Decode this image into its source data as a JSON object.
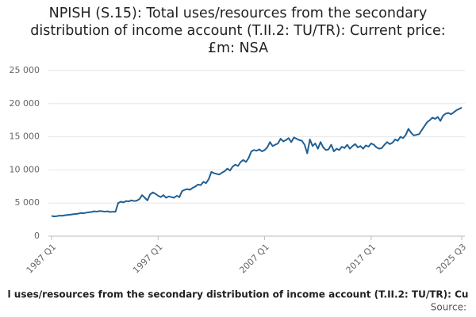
{
  "chart_data": {
    "type": "line",
    "title": "NPISH (S.15): Total uses/resources from the secondary distribution of income account (T.II.2: TU/TR): Current price: £m: NSA",
    "footer": "l uses/resources from the secondary distribution of income account (T.II.2: TU/TR): Cu",
    "source": "Source:",
    "categories": [
      "1987 Q1",
      null,
      null,
      null,
      null,
      null,
      null,
      null,
      null,
      null,
      null,
      null,
      null,
      null,
      null,
      null,
      null,
      null,
      null,
      null,
      null,
      null,
      null,
      null,
      null,
      null,
      null,
      null,
      null,
      null,
      null,
      null,
      null,
      null,
      null,
      null,
      null,
      null,
      null,
      null,
      "1997 Q1",
      null,
      null,
      null,
      null,
      null,
      null,
      null,
      null,
      null,
      null,
      null,
      null,
      null,
      null,
      null,
      null,
      null,
      null,
      null,
      null,
      null,
      null,
      null,
      null,
      null,
      null,
      null,
      null,
      null,
      null,
      null,
      null,
      null,
      null,
      null,
      null,
      null,
      null,
      null,
      "2007 Q1",
      null,
      null,
      null,
      null,
      null,
      null,
      null,
      null,
      null,
      null,
      null,
      null,
      null,
      null,
      null,
      null,
      null,
      null,
      null,
      null,
      null,
      null,
      null,
      null,
      null,
      null,
      null,
      null,
      null,
      null,
      null,
      null,
      null,
      null,
      null,
      null,
      null,
      null,
      null,
      "2017 Q1",
      null,
      null,
      null,
      null,
      null,
      null,
      null,
      null,
      null,
      null,
      null,
      null,
      null,
      null,
      null,
      null,
      null,
      null,
      null,
      null,
      null,
      null,
      null,
      null,
      null,
      null,
      null,
      null,
      null,
      null,
      null,
      null,
      null,
      "2025 Q3"
    ],
    "values": [
      3050,
      2980,
      3020,
      3100,
      3080,
      3150,
      3200,
      3250,
      3300,
      3350,
      3400,
      3500,
      3450,
      3550,
      3600,
      3650,
      3750,
      3700,
      3800,
      3750,
      3700,
      3750,
      3650,
      3700,
      3680,
      5000,
      5200,
      5100,
      5300,
      5250,
      5400,
      5300,
      5350,
      5600,
      6200,
      5800,
      5400,
      6300,
      6600,
      6400,
      6100,
      5900,
      6200,
      5800,
      6000,
      5900,
      5800,
      6100,
      5900,
      6800,
      7000,
      7100,
      7000,
      7300,
      7500,
      7800,
      7700,
      8200,
      8000,
      8600,
      9700,
      9500,
      9400,
      9300,
      9600,
      9800,
      10200,
      9900,
      10500,
      10800,
      10600,
      11200,
      11500,
      11200,
      11800,
      12800,
      13000,
      12900,
      13100,
      12800,
      13000,
      13400,
      14200,
      13600,
      13800,
      14000,
      14700,
      14300,
      14500,
      14800,
      14200,
      14900,
      14700,
      14500,
      14400,
      13800,
      12500,
      14600,
      13600,
      14000,
      13200,
      14200,
      13400,
      13000,
      13100,
      13800,
      12800,
      13200,
      13000,
      13500,
      13300,
      13800,
      13200,
      13600,
      13900,
      13400,
      13600,
      13200,
      13700,
      13500,
      14000,
      13800,
      13400,
      13200,
      13300,
      13800,
      14200,
      13900,
      14100,
      14600,
      14400,
      15000,
      14800,
      15300,
      16200,
      15600,
      15200,
      15300,
      15400,
      16000,
      16600,
      17200,
      17500,
      17900,
      17700,
      18000,
      17400,
      18200,
      18500,
      18600,
      18400,
      18700,
      19000,
      19200,
      19400
    ],
    "color": "#206095",
    "ylim": [
      0,
      25000
    ],
    "yticks": [
      0,
      {
        "value": 5000,
        "label": "5 000"
      },
      {
        "value": 10000,
        "label": "10 000"
      },
      {
        "value": 15000,
        "label": "15 000"
      },
      {
        "value": 20000,
        "label": "20 000"
      },
      {
        "value": 25000,
        "label": "25 000"
      }
    ],
    "grid": true
  }
}
